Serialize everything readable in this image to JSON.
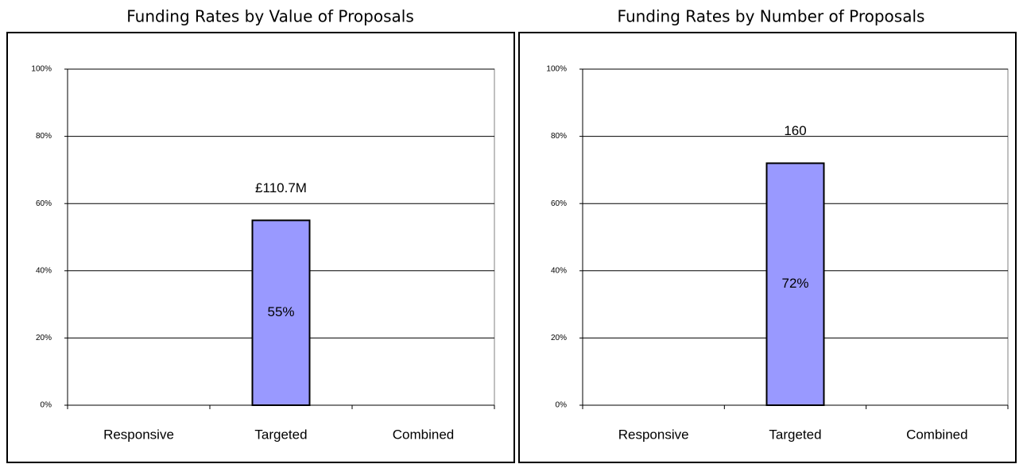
{
  "chart_data": [
    {
      "type": "bar",
      "title": "Funding Rates by Value of Proposals",
      "categories": [
        "Responsive",
        "Targeted",
        "Combined"
      ],
      "values": [
        null,
        55,
        null
      ],
      "value_labels": [
        null,
        "55%",
        null
      ],
      "top_labels": [
        null,
        "£110.7M",
        null
      ],
      "color": "#9999ff",
      "ylim": [
        0,
        100
      ],
      "yticks": [
        {
          "value": 0,
          "label": "0%"
        },
        {
          "value": 20,
          "label": "20%"
        },
        {
          "value": 40,
          "label": "40%"
        },
        {
          "value": 60,
          "label": "60%"
        },
        {
          "value": 80,
          "label": "80%"
        },
        {
          "value": 100,
          "label": "100%"
        }
      ],
      "grid": true
    },
    {
      "type": "bar",
      "title": "Funding Rates by Number of Proposals",
      "categories": [
        "Responsive",
        "Targeted",
        "Combined"
      ],
      "values": [
        null,
        72,
        null
      ],
      "value_labels": [
        null,
        "72%",
        null
      ],
      "top_labels": [
        null,
        "160",
        null
      ],
      "color": "#9999ff",
      "ylim": [
        0,
        100
      ],
      "yticks": [
        {
          "value": 0,
          "label": "0%"
        },
        {
          "value": 20,
          "label": "20%"
        },
        {
          "value": 40,
          "label": "40%"
        },
        {
          "value": 60,
          "label": "60%"
        },
        {
          "value": 80,
          "label": "80%"
        },
        {
          "value": 100,
          "label": "100%"
        }
      ],
      "grid": true
    }
  ]
}
